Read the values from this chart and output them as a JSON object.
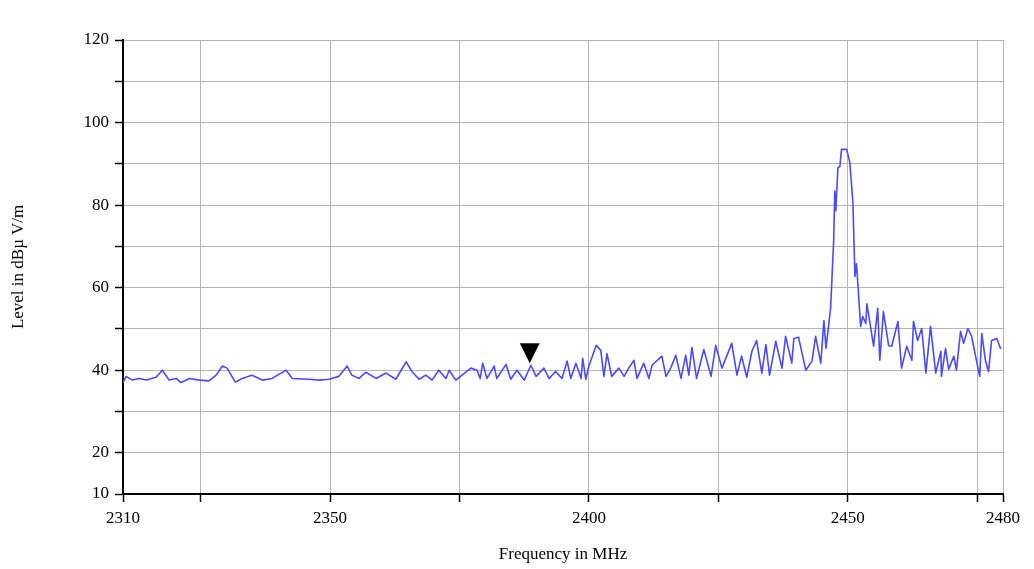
{
  "chart_data": {
    "type": "line",
    "xlabel": "Frequency in MHz",
    "ylabel": "Level in dBµ V/m",
    "xlim": [
      2310,
      2480
    ],
    "xticks": [
      2310,
      {
        "value": 2325,
        "label": null
      },
      2350,
      {
        "value": 2375,
        "label": null
      },
      2400,
      {
        "value": 2425,
        "label": null
      },
      2450,
      {
        "value": 2475,
        "label": null
      },
      2480
    ],
    "ylim": [
      10,
      120
    ],
    "yticks": [
      10,
      20,
      {
        "value": 30,
        "label": null
      },
      40,
      {
        "value": 50,
        "label": null
      },
      60,
      {
        "value": 70,
        "label": null
      },
      80,
      {
        "value": 90,
        "label": null
      },
      100,
      {
        "value": 110,
        "label": null
      },
      120
    ],
    "grid": true,
    "marker": "none",
    "line_style": "solid",
    "annotations": [
      {
        "text": "▼",
        "x": 2388.6,
        "y": 42
      }
    ],
    "series": [
      {
        "color": "#4a4aff",
        "x": [
          2310.0,
          2310.6,
          2311.8,
          2313.1,
          2314.5,
          2316.4,
          2317.6,
          2318.9,
          2320.3,
          2321.2,
          2322.8,
          2324.7,
          2326.6,
          2328.0,
          2329.2,
          2330.1,
          2331.7,
          2333.0,
          2334.9,
          2336.9,
          2338.8,
          2341.5,
          2342.7,
          2345.9,
          2347.9,
          2349.8,
          2351.7,
          2353.3,
          2354.2,
          2355.6,
          2356.9,
          2358.9,
          2360.8,
          2362.7,
          2364.7,
          2365.8,
          2367.2,
          2368.5,
          2369.7,
          2371.0,
          2372.4,
          2373.0,
          2374.3,
          2375.5,
          2377.2,
          2378.4,
          2379.0,
          2379.5,
          2380.3,
          2381.7,
          2382.2,
          2384.0,
          2384.9,
          2386.1,
          2387.5,
          2388.8,
          2389.8,
          2391.3,
          2392.3,
          2393.6,
          2394.8,
          2395.8,
          2396.5,
          2397.5,
          2398.5,
          2398.8,
          2399.4,
          2400.0,
          2401.4,
          2402.3,
          2402.9,
          2403.5,
          2404.4,
          2405.8,
          2406.8,
          2407.7,
          2408.7,
          2409.3,
          2410.6,
          2411.6,
          2412.2,
          2414.1,
          2414.9,
          2415.8,
          2416.8,
          2417.8,
          2418.7,
          2419.3,
          2419.9,
          2420.8,
          2422.2,
          2423.6,
          2424.5,
          2425.7,
          2427.6,
          2428.6,
          2429.5,
          2430.5,
          2431.5,
          2432.4,
          2433.4,
          2434.2,
          2434.9,
          2436.1,
          2437.3,
          2438.0,
          2439.2,
          2439.6,
          2440.5,
          2441.9,
          2443.1,
          2443.8,
          2444.8,
          2445.4,
          2445.8,
          2446.7,
          2447.3,
          2447.5,
          2447.7,
          2448.1,
          2448.5,
          2448.8,
          2449.8,
          2450.4,
          2451.0,
          2451.4,
          2451.7,
          2452.5,
          2452.9,
          2453.5,
          2453.7,
          2454.4,
          2455.0,
          2455.8,
          2456.2,
          2456.9,
          2457.9,
          2458.5,
          2459.7,
          2460.4,
          2461.4,
          2462.4,
          2462.7,
          2463.5,
          2464.3,
          2465.1,
          2466.0,
          2467.0,
          2468.0,
          2468.1,
          2468.9,
          2469.5,
          2470.5,
          2471.0,
          2471.8,
          2472.4,
          2473.2,
          2473.9,
          2474.7,
          2475.5,
          2475.9,
          2476.6,
          2477.2,
          2477.8,
          2478.8,
          2479.5
        ],
        "values": [
          37,
          38.5,
          37.6,
          38,
          37.6,
          38.3,
          40,
          37.6,
          38,
          37,
          38,
          37.6,
          37.4,
          38.8,
          41,
          40.5,
          37.1,
          38,
          38.8,
          37.6,
          38,
          40,
          38,
          37.8,
          37.6,
          37.8,
          38.5,
          41,
          38.8,
          38,
          39.5,
          38,
          39.3,
          37.8,
          42,
          39.7,
          37.8,
          38.8,
          37.6,
          40,
          38,
          40,
          37.6,
          38.8,
          40.5,
          40,
          38,
          41.7,
          38,
          41,
          38,
          41.4,
          37.8,
          40,
          37.6,
          41.2,
          38.5,
          40.5,
          38,
          39.7,
          38,
          42.2,
          38,
          41.7,
          38,
          42.9,
          37.8,
          41,
          46,
          44.8,
          38.5,
          44,
          38.5,
          40.5,
          38.5,
          40.5,
          42.4,
          38,
          41.7,
          38,
          41.2,
          43.4,
          38.5,
          40.5,
          43.6,
          38,
          43.6,
          38.8,
          45.5,
          38,
          45,
          38.5,
          46,
          40.5,
          46.5,
          38.8,
          43.4,
          38.3,
          44.6,
          47.2,
          39.3,
          46.2,
          38.8,
          47,
          40.5,
          48.2,
          41.7,
          47.7,
          48,
          40,
          42.2,
          48.2,
          41.7,
          52,
          45.3,
          55,
          71.8,
          83.4,
          78.6,
          89,
          89.4,
          93.5,
          93.5,
          90.4,
          80.7,
          62.7,
          65.8,
          50.6,
          53,
          51.3,
          56.1,
          50.6,
          45.8,
          55,
          42.4,
          54.2,
          46,
          45.8,
          51.8,
          40.5,
          45.8,
          42.4,
          51.8,
          47.2,
          50.1,
          39.3,
          50.6,
          39.3,
          44.6,
          38.5,
          45.3,
          40.2,
          43.4,
          40,
          49.4,
          46.5,
          50.1,
          48.4,
          43.4,
          38.5,
          48.9,
          42.4,
          39.7,
          47.2,
          47.7,
          45.3
        ]
      }
    ]
  }
}
